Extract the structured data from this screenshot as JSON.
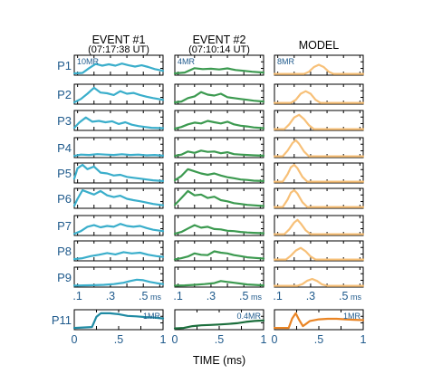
{
  "chart_data": {
    "type": "line",
    "title": "",
    "xlabel": "TIME (ms)",
    "columns": [
      {
        "title": "EVENT #1",
        "subtitle": "(07:17:38 UT)",
        "color": "#3aaecb",
        "scale_p1": "10MR",
        "scale_p11": "1MR",
        "p11_color": "#1f8aa3"
      },
      {
        "title": "EVENT #2",
        "subtitle": "(07:10:14 UT)",
        "color": "#3c9a50",
        "scale_p1": "4MR",
        "scale_p11": "0.4MR",
        "p11_color": "#1b6e3c"
      },
      {
        "title": "MODEL",
        "subtitle": "",
        "color": "#f7c078",
        "scale_p1": "8MR",
        "scale_p11": "1MR",
        "p11_color": "#e98424"
      }
    ],
    "panel_labels": [
      "P1",
      "P2",
      "P3",
      "P4",
      "P5",
      "P6",
      "P7",
      "P8",
      "P9"
    ],
    "p11_label": "P11",
    "xaxis_top": {
      "range": [
        0.08,
        0.62
      ],
      "ticks": [
        ".1",
        ".3",
        ".5"
      ],
      "tick_values": [
        0.1,
        0.3,
        0.5
      ],
      "unit": "ms"
    },
    "xaxis_p11": {
      "range": [
        0,
        1
      ],
      "ticks": [
        "0",
        ".5",
        "1"
      ],
      "tick_values": [
        0,
        0.5,
        1
      ]
    },
    "series": {
      "event1": [
        {
          "panel": "P1",
          "x": [
            0.08,
            0.13,
            0.17,
            0.21,
            0.25,
            0.29,
            0.33,
            0.37,
            0.41,
            0.45,
            0.49,
            0.53,
            0.57,
            0.62
          ],
          "y": [
            0.05,
            0.08,
            0.35,
            0.6,
            0.5,
            0.58,
            0.5,
            0.62,
            0.52,
            0.45,
            0.52,
            0.42,
            0.3,
            0.2
          ]
        },
        {
          "panel": "P2",
          "x": [
            0.08,
            0.12,
            0.16,
            0.2,
            0.24,
            0.28,
            0.32,
            0.36,
            0.4,
            0.44,
            0.48,
            0.52,
            0.56,
            0.62
          ],
          "y": [
            0.05,
            0.25,
            0.55,
            0.9,
            0.62,
            0.58,
            0.48,
            0.7,
            0.55,
            0.6,
            0.48,
            0.38,
            0.3,
            0.2
          ]
        },
        {
          "panel": "P3",
          "x": [
            0.08,
            0.11,
            0.15,
            0.19,
            0.23,
            0.27,
            0.31,
            0.35,
            0.39,
            0.43,
            0.47,
            0.51,
            0.55,
            0.62
          ],
          "y": [
            0.1,
            0.4,
            0.7,
            0.45,
            0.5,
            0.42,
            0.48,
            0.32,
            0.42,
            0.28,
            0.2,
            0.15,
            0.1,
            0.08
          ]
        },
        {
          "panel": "P4",
          "x": [
            0.08,
            0.12,
            0.17,
            0.22,
            0.27,
            0.32,
            0.37,
            0.42,
            0.47,
            0.52,
            0.57,
            0.62
          ],
          "y": [
            0.05,
            0.12,
            0.1,
            0.15,
            0.12,
            0.1,
            0.14,
            0.1,
            0.12,
            0.08,
            0.1,
            0.06
          ]
        },
        {
          "panel": "P5",
          "x": [
            0.08,
            0.1,
            0.13,
            0.16,
            0.2,
            0.24,
            0.28,
            0.32,
            0.36,
            0.4,
            0.44,
            0.48,
            0.52,
            0.56,
            0.62
          ],
          "y": [
            0.2,
            0.8,
            1.0,
            0.75,
            0.9,
            0.55,
            0.5,
            0.38,
            0.42,
            0.3,
            0.25,
            0.2,
            0.15,
            0.1,
            0.06
          ]
        },
        {
          "panel": "P6",
          "x": [
            0.08,
            0.1,
            0.13,
            0.17,
            0.2,
            0.24,
            0.28,
            0.32,
            0.36,
            0.4,
            0.44,
            0.48,
            0.52,
            0.56,
            0.62
          ],
          "y": [
            0.1,
            0.5,
            1.0,
            0.85,
            0.75,
            0.95,
            0.7,
            0.6,
            0.68,
            0.5,
            0.42,
            0.36,
            0.28,
            0.2,
            0.12
          ]
        },
        {
          "panel": "P7",
          "x": [
            0.08,
            0.12,
            0.16,
            0.2,
            0.24,
            0.28,
            0.32,
            0.36,
            0.4,
            0.44,
            0.48,
            0.52,
            0.56,
            0.62
          ],
          "y": [
            0.05,
            0.2,
            0.45,
            0.55,
            0.42,
            0.5,
            0.45,
            0.62,
            0.5,
            0.45,
            0.5,
            0.38,
            0.28,
            0.2
          ]
        },
        {
          "panel": "P8",
          "x": [
            0.08,
            0.13,
            0.18,
            0.23,
            0.28,
            0.33,
            0.38,
            0.43,
            0.48,
            0.53,
            0.58,
            0.62
          ],
          "y": [
            0.05,
            0.1,
            0.22,
            0.3,
            0.4,
            0.32,
            0.45,
            0.38,
            0.42,
            0.3,
            0.22,
            0.18
          ]
        },
        {
          "panel": "P9",
          "x": [
            0.08,
            0.14,
            0.2,
            0.26,
            0.32,
            0.38,
            0.42,
            0.46,
            0.5,
            0.54,
            0.58,
            0.62
          ],
          "y": [
            0.03,
            0.05,
            0.06,
            0.08,
            0.12,
            0.2,
            0.3,
            0.38,
            0.35,
            0.25,
            0.18,
            0.12
          ]
        }
      ],
      "event2": [
        {
          "panel": "P1",
          "x": [
            0.08,
            0.14,
            0.2,
            0.25,
            0.3,
            0.35,
            0.4,
            0.45,
            0.5,
            0.55,
            0.62
          ],
          "y": [
            0.05,
            0.1,
            0.35,
            0.3,
            0.32,
            0.28,
            0.34,
            0.25,
            0.2,
            0.15,
            0.1
          ]
        },
        {
          "panel": "P2",
          "x": [
            0.08,
            0.12,
            0.16,
            0.2,
            0.24,
            0.28,
            0.32,
            0.36,
            0.4,
            0.44,
            0.48,
            0.52,
            0.56,
            0.62
          ],
          "y": [
            0.05,
            0.1,
            0.3,
            0.4,
            0.65,
            0.5,
            0.45,
            0.55,
            0.35,
            0.3,
            0.25,
            0.2,
            0.15,
            0.1
          ]
        },
        {
          "panel": "P3",
          "x": [
            0.08,
            0.12,
            0.16,
            0.2,
            0.24,
            0.28,
            0.32,
            0.36,
            0.4,
            0.44,
            0.48,
            0.52,
            0.56,
            0.62
          ],
          "y": [
            0.05,
            0.15,
            0.3,
            0.4,
            0.35,
            0.5,
            0.42,
            0.35,
            0.45,
            0.3,
            0.22,
            0.18,
            0.12,
            0.08
          ]
        },
        {
          "panel": "P4",
          "x": [
            0.08,
            0.12,
            0.16,
            0.2,
            0.24,
            0.28,
            0.32,
            0.36,
            0.4,
            0.44,
            0.48,
            0.52,
            0.56,
            0.62
          ],
          "y": [
            0.05,
            0.12,
            0.3,
            0.22,
            0.35,
            0.28,
            0.3,
            0.2,
            0.26,
            0.15,
            0.12,
            0.1,
            0.08,
            0.06
          ]
        },
        {
          "panel": "P5",
          "x": [
            0.08,
            0.12,
            0.16,
            0.2,
            0.24,
            0.28,
            0.32,
            0.36,
            0.4,
            0.44,
            0.48,
            0.52,
            0.56,
            0.62
          ],
          "y": [
            0.1,
            0.35,
            0.75,
            0.62,
            0.5,
            0.42,
            0.5,
            0.38,
            0.28,
            0.22,
            0.15,
            0.12,
            0.08,
            0.06
          ]
        },
        {
          "panel": "P6",
          "x": [
            0.08,
            0.12,
            0.16,
            0.2,
            0.24,
            0.28,
            0.32,
            0.36,
            0.4,
            0.44,
            0.48,
            0.52,
            0.56,
            0.62
          ],
          "y": [
            0.15,
            0.55,
            0.95,
            0.7,
            0.75,
            0.55,
            0.62,
            0.42,
            0.35,
            0.25,
            0.2,
            0.15,
            0.12,
            0.08
          ]
        },
        {
          "panel": "P7",
          "x": [
            0.08,
            0.12,
            0.16,
            0.2,
            0.24,
            0.28,
            0.32,
            0.36,
            0.4,
            0.44,
            0.48,
            0.52,
            0.56,
            0.62
          ],
          "y": [
            0.05,
            0.15,
            0.35,
            0.55,
            0.4,
            0.45,
            0.32,
            0.3,
            0.22,
            0.2,
            0.15,
            0.12,
            0.1,
            0.08
          ]
        },
        {
          "panel": "P8",
          "x": [
            0.08,
            0.12,
            0.16,
            0.2,
            0.24,
            0.28,
            0.32,
            0.36,
            0.4,
            0.44,
            0.48,
            0.52,
            0.56,
            0.62
          ],
          "y": [
            0.03,
            0.1,
            0.2,
            0.38,
            0.3,
            0.28,
            0.5,
            0.42,
            0.38,
            0.28,
            0.22,
            0.15,
            0.12,
            0.08
          ]
        },
        {
          "panel": "P9",
          "x": [
            0.08,
            0.14,
            0.2,
            0.26,
            0.32,
            0.36,
            0.4,
            0.44,
            0.48,
            0.52,
            0.56,
            0.62
          ],
          "y": [
            0.03,
            0.05,
            0.08,
            0.12,
            0.18,
            0.3,
            0.25,
            0.2,
            0.15,
            0.1,
            0.08,
            0.05
          ]
        }
      ],
      "model": [
        {
          "panel": "P1",
          "x": [
            0.08,
            0.26,
            0.29,
            0.32,
            0.35,
            0.38,
            0.41,
            0.44,
            0.62
          ],
          "y": [
            0.02,
            0.02,
            0.15,
            0.42,
            0.55,
            0.42,
            0.15,
            0.02,
            0.02
          ]
        },
        {
          "panel": "P2",
          "x": [
            0.08,
            0.18,
            0.21,
            0.24,
            0.27,
            0.3,
            0.33,
            0.36,
            0.62
          ],
          "y": [
            0.02,
            0.02,
            0.2,
            0.55,
            0.7,
            0.55,
            0.2,
            0.02,
            0.02
          ]
        },
        {
          "panel": "P3",
          "x": [
            0.08,
            0.14,
            0.17,
            0.2,
            0.23,
            0.26,
            0.29,
            0.32,
            0.62
          ],
          "y": [
            0.02,
            0.02,
            0.3,
            0.7,
            0.85,
            0.6,
            0.25,
            0.02,
            0.02
          ]
        },
        {
          "panel": "P4",
          "x": [
            0.08,
            0.13,
            0.16,
            0.19,
            0.21,
            0.23,
            0.26,
            0.29,
            0.62
          ],
          "y": [
            0.02,
            0.02,
            0.35,
            0.8,
            0.95,
            0.75,
            0.3,
            0.02,
            0.02
          ]
        },
        {
          "panel": "P5",
          "x": [
            0.08,
            0.13,
            0.16,
            0.18,
            0.2,
            0.22,
            0.25,
            0.28,
            0.62
          ],
          "y": [
            0.02,
            0.02,
            0.45,
            0.85,
            1.0,
            0.8,
            0.3,
            0.02,
            0.02
          ]
        },
        {
          "panel": "P6",
          "x": [
            0.08,
            0.13,
            0.16,
            0.18,
            0.2,
            0.22,
            0.25,
            0.28,
            0.62
          ],
          "y": [
            0.02,
            0.02,
            0.45,
            0.85,
            1.0,
            0.8,
            0.3,
            0.02,
            0.02
          ]
        },
        {
          "panel": "P7",
          "x": [
            0.08,
            0.14,
            0.17,
            0.2,
            0.22,
            0.24,
            0.27,
            0.3,
            0.62
          ],
          "y": [
            0.02,
            0.02,
            0.3,
            0.7,
            0.85,
            0.65,
            0.25,
            0.02,
            0.02
          ]
        },
        {
          "panel": "P8",
          "x": [
            0.08,
            0.15,
            0.18,
            0.21,
            0.24,
            0.27,
            0.3,
            0.33,
            0.62
          ],
          "y": [
            0.02,
            0.02,
            0.25,
            0.55,
            0.7,
            0.5,
            0.2,
            0.02,
            0.02
          ]
        },
        {
          "panel": "P9",
          "x": [
            0.08,
            0.22,
            0.25,
            0.28,
            0.31,
            0.34,
            0.37,
            0.4,
            0.62
          ],
          "y": [
            0.02,
            0.02,
            0.12,
            0.32,
            0.42,
            0.3,
            0.1,
            0.02,
            0.02
          ]
        }
      ],
      "p11": [
        {
          "column": "EVENT #1",
          "x": [
            0,
            0.2,
            0.25,
            0.3,
            0.4,
            0.5,
            0.6,
            0.7,
            0.8,
            0.9,
            1.0
          ],
          "y": [
            0.05,
            0.1,
            0.7,
            0.9,
            0.9,
            0.85,
            0.75,
            0.72,
            0.68,
            0.65,
            0.6
          ]
        },
        {
          "column": "EVENT #2",
          "x": [
            0,
            0.1,
            0.2,
            0.3,
            0.4,
            0.5,
            0.6,
            0.7,
            0.8,
            0.9,
            1.0
          ],
          "y": [
            0.02,
            0.05,
            0.15,
            0.2,
            0.22,
            0.25,
            0.28,
            0.32,
            0.4,
            0.45,
            0.48
          ]
        },
        {
          "column": "MODEL",
          "x": [
            0,
            0.16,
            0.2,
            0.24,
            0.28,
            0.32,
            0.36,
            0.4,
            0.5,
            0.6,
            0.7,
            0.8,
            0.9,
            1.0
          ],
          "y": [
            0.05,
            0.05,
            0.6,
            0.9,
            0.5,
            0.15,
            0.3,
            0.45,
            0.55,
            0.58,
            0.58,
            0.55,
            0.52,
            0.5
          ]
        }
      ]
    }
  }
}
